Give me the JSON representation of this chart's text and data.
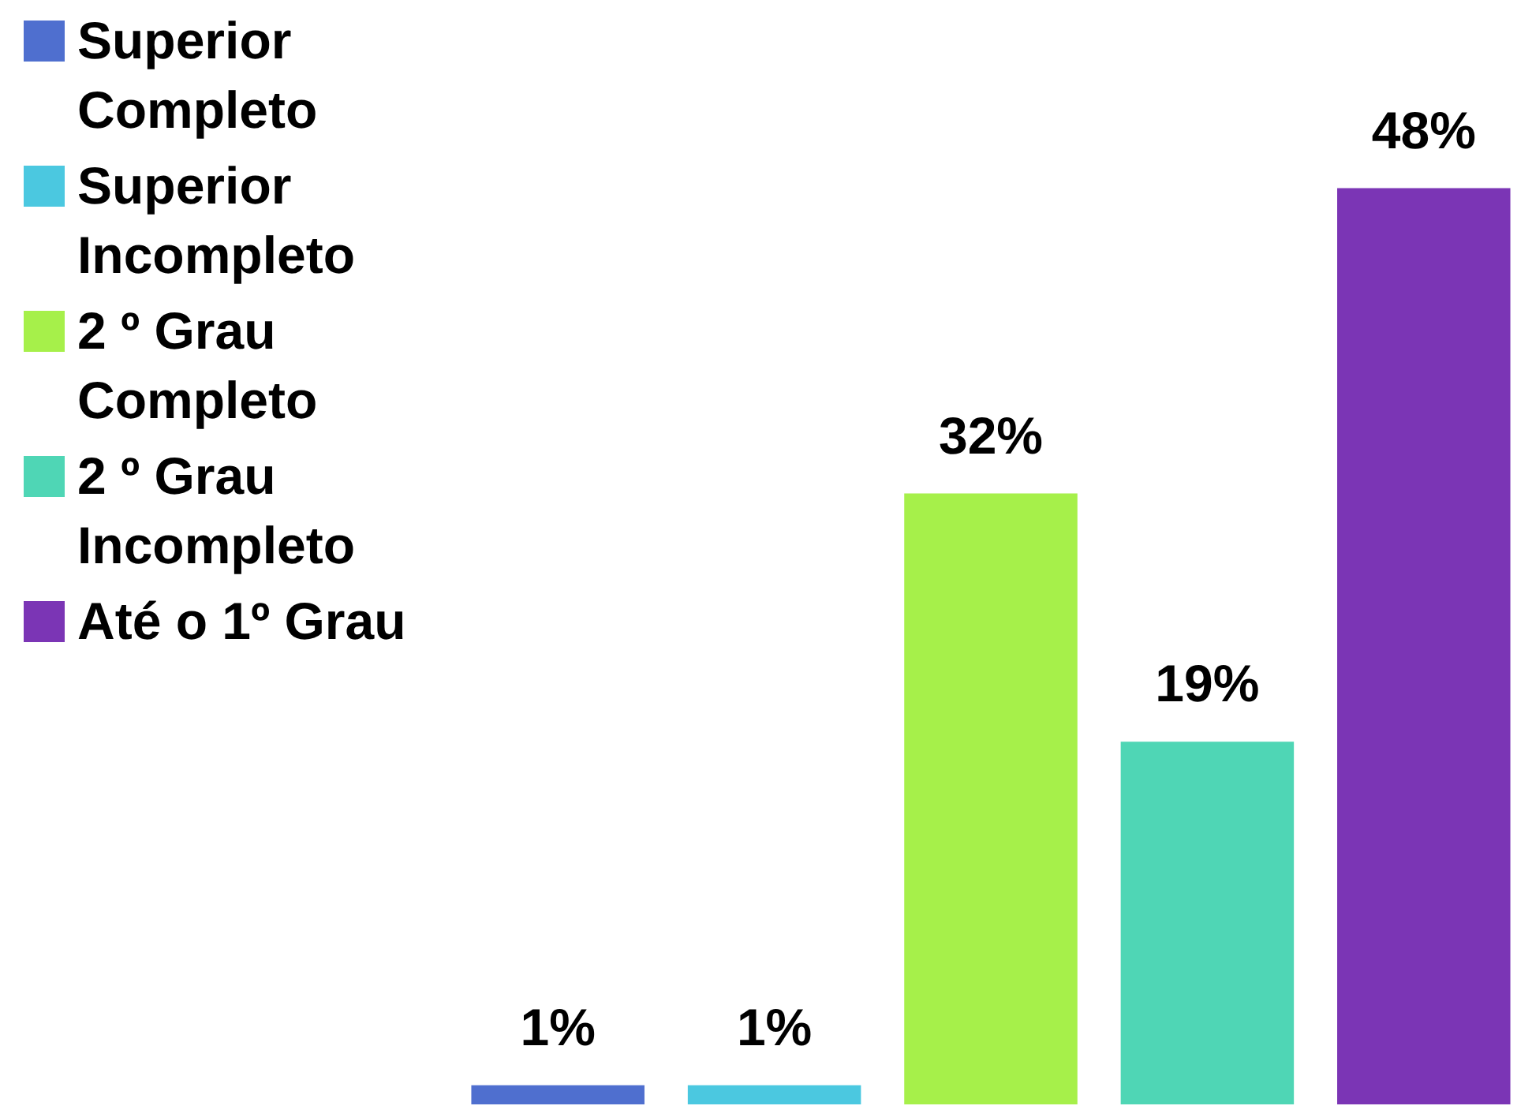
{
  "chart_data": {
    "type": "bar",
    "stacked": true,
    "legend": "left",
    "grid": false,
    "tick_labels": false,
    "categories": [
      null,
      null,
      null,
      null,
      null
    ],
    "series": [
      {
        "name": "Superior Completo",
        "color": "#4f6fcf",
        "values": [
          1,
          null,
          null,
          null,
          null
        ],
        "value_labels": [
          "1%",
          null,
          null,
          null,
          null
        ]
      },
      {
        "name": "Superior Incompleto",
        "color": "#4bc8e0",
        "values": [
          null,
          1,
          null,
          null,
          null
        ],
        "value_labels": [
          null,
          "1%",
          null,
          null,
          null
        ]
      },
      {
        "name": "2 º Grau Completo",
        "color": "#a6f04a",
        "values": [
          null,
          null,
          32,
          null,
          null
        ],
        "value_labels": [
          null,
          null,
          "32%",
          null,
          null
        ]
      },
      {
        "name": "2 º Grau Incompleto",
        "color": "#4fd6b5",
        "values": [
          null,
          null,
          null,
          19,
          null
        ],
        "value_labels": [
          null,
          null,
          null,
          "19%",
          null
        ]
      },
      {
        "name": "Até o 1º Grau",
        "color": "#7b35b5",
        "values": [
          null,
          null,
          null,
          null,
          48
        ],
        "value_labels": [
          null,
          null,
          null,
          null,
          "48%"
        ]
      }
    ]
  }
}
